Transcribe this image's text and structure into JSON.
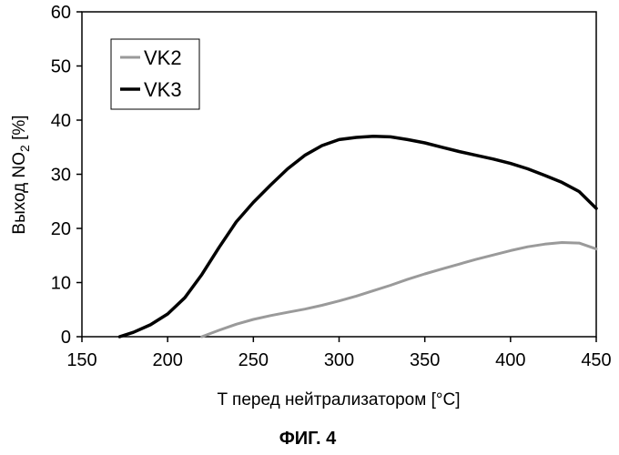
{
  "chart_data": {
    "type": "line",
    "title": "",
    "caption": "ФИГ. 4",
    "xlabel": "T перед нейтрализатором [°C]",
    "ylabel_main": "Выход NO",
    "ylabel_sub": "2",
    "ylabel_suffix": " [%]",
    "xlim": [
      150,
      450
    ],
    "ylim": [
      0,
      60
    ],
    "x_ticks": [
      "150",
      "200",
      "250",
      "300",
      "350",
      "400",
      "450"
    ],
    "y_ticks": [
      "0",
      "10",
      "20",
      "30",
      "40",
      "50",
      "60"
    ],
    "grid": false,
    "legend_position": "top-left",
    "series": [
      {
        "name": "VK2",
        "color": "#9a9a9a",
        "x": [
          220,
          230,
          240,
          250,
          260,
          270,
          280,
          290,
          300,
          310,
          320,
          330,
          340,
          350,
          360,
          370,
          380,
          390,
          400,
          410,
          420,
          430,
          440,
          450
        ],
        "y": [
          0,
          1.2,
          2.3,
          3.2,
          3.9,
          4.5,
          5.1,
          5.8,
          6.6,
          7.5,
          8.5,
          9.5,
          10.6,
          11.6,
          12.5,
          13.4,
          14.3,
          15.1,
          15.9,
          16.6,
          17.1,
          17.4,
          17.3,
          16.2
        ]
      },
      {
        "name": "VK3",
        "color": "#000000",
        "x": [
          172,
          180,
          190,
          200,
          210,
          220,
          230,
          240,
          250,
          260,
          270,
          280,
          290,
          300,
          310,
          320,
          330,
          340,
          350,
          360,
          370,
          380,
          390,
          400,
          410,
          420,
          430,
          440,
          450
        ],
        "y": [
          0,
          0.8,
          2.2,
          4.2,
          7.2,
          11.5,
          16.5,
          21.2,
          24.8,
          28.0,
          31.0,
          33.5,
          35.3,
          36.4,
          36.8,
          37.0,
          36.9,
          36.4,
          35.8,
          35.0,
          34.2,
          33.5,
          32.8,
          32.0,
          31.0,
          29.8,
          28.5,
          26.8,
          23.7
        ]
      }
    ]
  }
}
